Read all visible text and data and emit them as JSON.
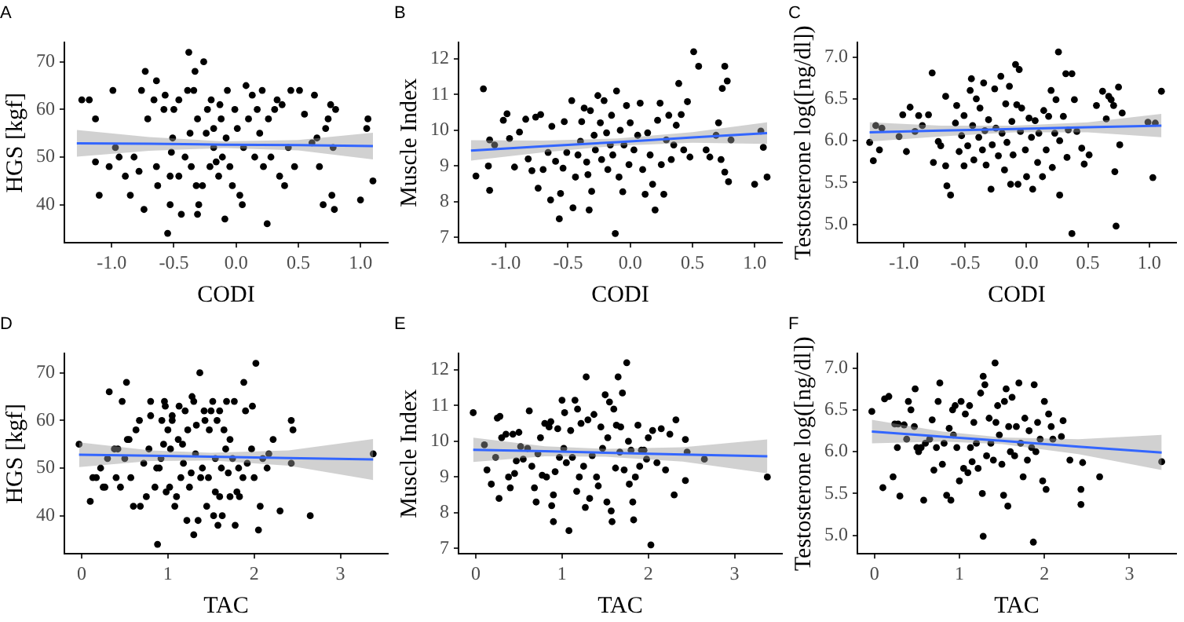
{
  "chart_data": [
    {
      "type": "scatter",
      "title": "A",
      "xlabel": "CODI",
      "ylabel": "HGS [kgf]",
      "xlim": [
        -1.38,
        1.22
      ],
      "xticks": [
        {
          "value": -1,
          "label": "-1.0"
        },
        -0.5,
        {
          "value": 0,
          "label": "0.0"
        },
        0.5,
        {
          "value": 1,
          "label": "1.0"
        }
      ],
      "ylim": [
        32,
        74
      ],
      "yticks": [
        40,
        50,
        60,
        70
      ],
      "grid": false,
      "series": [
        {
          "type": "scatter",
          "color": "#000000",
          "marker": "circle",
          "x": [
            -1.24,
            -1.18,
            -1.13,
            -1.13,
            -1.1,
            -0.99,
            -1.02,
            -0.97,
            -0.94,
            -0.89,
            -0.85,
            -0.82,
            -0.78,
            -0.76,
            -0.73,
            -0.74,
            -0.71,
            -0.64,
            -0.66,
            -0.64,
            -0.63,
            -0.58,
            -0.57,
            -0.55,
            -0.53,
            -0.53,
            -0.51,
            -0.5,
            -0.52,
            -0.46,
            -0.46,
            -0.44,
            -0.41,
            -0.39,
            -0.38,
            -0.37,
            -0.36,
            -0.34,
            -0.33,
            -0.31,
            -0.32,
            -0.31,
            -0.3,
            -0.27,
            -0.26,
            -0.24,
            -0.23,
            -0.21,
            -0.2,
            -0.18,
            -0.18,
            -0.16,
            -0.14,
            -0.13,
            -0.12,
            -0.11,
            -0.09,
            -0.08,
            -0.07,
            -0.05,
            -0.03,
            -0.01,
            0.01,
            0.03,
            0.05,
            0.06,
            0.08,
            0.1,
            0.13,
            0.15,
            0.17,
            0.19,
            0.21,
            0.22,
            0.25,
            0.26,
            0.28,
            0.31,
            0.33,
            0.35,
            0.37,
            0.39,
            0.42,
            0.44,
            0.47,
            0.51,
            0.55,
            0.61,
            0.63,
            0.65,
            0.67,
            0.7,
            0.72,
            0.74,
            0.76,
            0.77,
            0.78,
            0.79,
            0.8,
            1.0,
            1.05,
            1.06,
            1.1
          ],
          "values": [
            62,
            62,
            58,
            49,
            42,
            64,
            48,
            52,
            50,
            46,
            42,
            50,
            47,
            64,
            68,
            39,
            58,
            66,
            62,
            48,
            44,
            60,
            63,
            34,
            46,
            40,
            54,
            60,
            51,
            46,
            62,
            38,
            50,
            64,
            72,
            55,
            48,
            64,
            68,
            58,
            44,
            38,
            40,
            44,
            70,
            55,
            60,
            48,
            62,
            56,
            52,
            49,
            46,
            61,
            58,
            50,
            37,
            54,
            64,
            48,
            44,
            60,
            56,
            42,
            40,
            52,
            65,
            58,
            63,
            50,
            60,
            55,
            64,
            48,
            36,
            58,
            50,
            60,
            62,
            46,
            61,
            44,
            52,
            64,
            48,
            64,
            59,
            53,
            63,
            54,
            48,
            40,
            56,
            58,
            61,
            42,
            52,
            39,
            60,
            41,
            56,
            58,
            45
          ]
        },
        {
          "type": "line",
          "color": "#3366ff",
          "marker": "none",
          "x": [
            -1.28,
            -0.7,
            -0.1,
            0.5,
            1.1
          ],
          "values": [
            52.9,
            52.8,
            52.6,
            52.5,
            52.3
          ],
          "lower": [
            50.1,
            51.3,
            51.9,
            51.4,
            49.5
          ],
          "upper": [
            55.7,
            54.2,
            53.3,
            53.6,
            55.1
          ]
        }
      ]
    },
    {
      "type": "scatter",
      "title": "B",
      "xlabel": "CODI",
      "ylabel": "Muscle Index",
      "xlim": [
        -1.38,
        1.22
      ],
      "xticks": [
        {
          "value": -1,
          "label": "-1.0"
        },
        -0.5,
        {
          "value": 0,
          "label": "0.0"
        },
        0.5,
        {
          "value": 1,
          "label": "1.0"
        }
      ],
      "ylim": [
        6.85,
        12.45
      ],
      "yticks": [
        7,
        8,
        9,
        10,
        11,
        12
      ],
      "grid": false,
      "series": [
        {
          "type": "scatter",
          "color": "#000000",
          "marker": "circle",
          "x": [
            -1.24,
            -1.18,
            -1.14,
            -1.13,
            -1.13,
            -1.09,
            -1.02,
            -0.99,
            -0.97,
            -0.93,
            -0.89,
            -0.84,
            -0.82,
            -0.79,
            -0.76,
            -0.74,
            -0.72,
            -0.7,
            -0.66,
            -0.64,
            -0.63,
            -0.6,
            -0.57,
            -0.56,
            -0.54,
            -0.53,
            -0.51,
            -0.47,
            -0.46,
            -0.44,
            -0.42,
            -0.4,
            -0.39,
            -0.37,
            -0.35,
            -0.34,
            -0.33,
            -0.32,
            -0.31,
            -0.29,
            -0.28,
            -0.26,
            -0.24,
            -0.23,
            -0.21,
            -0.19,
            -0.18,
            -0.16,
            -0.15,
            -0.14,
            -0.12,
            -0.11,
            -0.09,
            -0.08,
            -0.06,
            -0.05,
            -0.03,
            -0.01,
            0.0,
            0.03,
            0.06,
            0.08,
            0.1,
            0.12,
            0.14,
            0.16,
            0.18,
            0.2,
            0.22,
            0.24,
            0.25,
            0.27,
            0.29,
            0.31,
            0.33,
            0.35,
            0.37,
            0.39,
            0.41,
            0.43,
            0.46,
            0.48,
            0.51,
            0.55,
            0.61,
            0.64,
            0.69,
            0.71,
            0.73,
            0.74,
            0.76,
            0.76,
            0.78,
            0.79,
            0.81,
            1.0,
            1.05,
            1.07,
            1.1
          ],
          "values": [
            8.72,
            11.16,
            9.0,
            8.32,
            9.73,
            9.59,
            10.28,
            10.46,
            9.77,
            8.97,
            9.95,
            10.31,
            9.2,
            8.87,
            10.37,
            8.38,
            10.44,
            8.9,
            9.38,
            8.05,
            10.11,
            9.13,
            7.52,
            8.23,
            8.94,
            10.24,
            9.38,
            10.83,
            7.83,
            8.69,
            9.31,
            9.69,
            10.24,
            10.62,
            9.11,
            8.76,
            7.77,
            10.55,
            8.29,
            9.86,
            9.45,
            10.97,
            10.21,
            9.18,
            10.83,
            9.93,
            8.9,
            9.59,
            10.42,
            9.31,
            7.11,
            11.1,
            8.69,
            10.0,
            8.28,
            9.59,
            10.69,
            9.04,
            10.21,
            9.45,
            9.86,
            10.76,
            8.9,
            8.21,
            9.93,
            9.31,
            8.49,
            7.77,
            10.28,
            10.76,
            9.04,
            8.21,
            9.73,
            10.42,
            9.18,
            9.59,
            10.14,
            11.31,
            10.44,
            9.45,
            10.8,
            9.25,
            12.2,
            11.79,
            9.45,
            9.25,
            9.86,
            10.21,
            9.18,
            11.17,
            11.79,
            8.83,
            11.38,
            8.56,
            9.73,
            8.49,
            9.98,
            9.52,
            8.69
          ]
        },
        {
          "type": "line",
          "color": "#3366ff",
          "marker": "none",
          "x": [
            -1.28,
            -0.7,
            -0.1,
            0.5,
            1.1
          ],
          "values": [
            9.43,
            9.55,
            9.67,
            9.8,
            9.92
          ],
          "lower": [
            9.15,
            9.38,
            9.57,
            9.65,
            9.62
          ],
          "upper": [
            9.72,
            9.71,
            9.77,
            9.95,
            10.22
          ]
        }
      ]
    },
    {
      "type": "scatter",
      "title": "C",
      "xlabel": "CODI",
      "ylabel": "Testosterone log([ng/dl])",
      "xlim": [
        -1.38,
        1.22
      ],
      "xticks": [
        {
          "value": -1,
          "label": "-1.0"
        },
        -0.5,
        {
          "value": 0,
          "label": "0.0"
        },
        0.5,
        {
          "value": 1,
          "label": "1.0"
        }
      ],
      "ylim": [
        4.78,
        7.17
      ],
      "yticks": [
        {
          "value": 5,
          "label": "5.0"
        },
        5.5,
        {
          "value": 6,
          "label": "6.0"
        },
        6.5,
        {
          "value": 7,
          "label": "7.0"
        }
      ],
      "grid": false,
      "series": [
        {
          "type": "scatter",
          "color": "#000000",
          "marker": "circle",
          "x": [
            -1.28,
            -1.25,
            -1.23,
            -1.2,
            -1.18,
            -1.04,
            -1.01,
            -0.98,
            -0.95,
            -0.91,
            -0.88,
            -0.85,
            -0.8,
            -0.77,
            -0.76,
            -0.72,
            -0.7,
            -0.66,
            -0.66,
            -0.65,
            -0.62,
            -0.58,
            -0.57,
            -0.55,
            -0.53,
            -0.51,
            -0.51,
            -0.48,
            -0.46,
            -0.45,
            -0.44,
            -0.43,
            -0.41,
            -0.39,
            -0.38,
            -0.36,
            -0.35,
            -0.34,
            -0.33,
            -0.31,
            -0.29,
            -0.28,
            -0.26,
            -0.25,
            -0.23,
            -0.21,
            -0.2,
            -0.18,
            -0.17,
            -0.16,
            -0.14,
            -0.13,
            -0.12,
            -0.11,
            -0.09,
            -0.08,
            -0.07,
            -0.06,
            -0.05,
            -0.04,
            -0.01,
            0.0,
            0.02,
            0.04,
            0.05,
            0.07,
            0.09,
            0.1,
            0.13,
            0.14,
            0.16,
            0.18,
            0.2,
            0.21,
            0.23,
            0.24,
            0.26,
            0.27,
            0.27,
            0.3,
            0.32,
            0.33,
            0.34,
            0.37,
            0.37,
            0.39,
            0.41,
            0.45,
            0.47,
            0.51,
            0.57,
            0.62,
            0.65,
            0.67,
            0.69,
            0.71,
            0.72,
            0.73,
            0.75,
            0.76,
            0.78,
            0.99,
            1.03,
            1.05,
            1.1
          ],
          "values": [
            5.98,
            5.76,
            6.18,
            5.89,
            6.15,
            6.05,
            6.31,
            5.87,
            6.4,
            6.11,
            6.3,
            6.18,
            6.31,
            6.81,
            5.74,
            5.99,
            5.94,
            6.53,
            5.7,
            5.46,
            5.35,
            6.21,
            6.42,
            5.87,
            6.06,
            6.3,
            5.7,
            5.94,
            6.6,
            6.74,
            6.18,
            5.77,
            6.5,
            6.04,
            6.39,
            5.89,
            6.69,
            6.12,
            5.71,
            6.25,
            5.42,
            5.95,
            6.62,
            6.15,
            5.82,
            6.77,
            6.09,
            5.65,
            6.44,
            5.98,
            6.65,
            5.48,
            6.23,
            5.83,
            6.91,
            6.43,
            5.48,
            6.85,
            6.11,
            6.39,
            5.89,
            5.57,
            6.27,
            6.04,
            5.42,
            6.24,
            5.74,
            6.09,
            5.57,
            6.36,
            5.89,
            6.29,
            6.6,
            5.68,
            6.09,
            6.49,
            7.06,
            5.35,
            6.0,
            6.29,
            6.8,
            5.8,
            6.13,
            6.8,
            4.89,
            6.49,
            6.11,
            5.91,
            5.72,
            5.83,
            6.42,
            6.59,
            6.26,
            6.53,
            6.49,
            6.42,
            5.63,
            4.98,
            6.64,
            5.95,
            6.33,
            6.22,
            5.56,
            6.21,
            6.59
          ]
        },
        {
          "type": "line",
          "color": "#3366ff",
          "marker": "none",
          "x": [
            -1.28,
            -0.7,
            -0.1,
            0.5,
            1.1
          ],
          "values": [
            6.1,
            6.12,
            6.14,
            6.16,
            6.18
          ],
          "lower": [
            5.99,
            6.05,
            6.1,
            6.1,
            6.04
          ],
          "upper": [
            6.22,
            6.18,
            6.18,
            6.22,
            6.32
          ]
        }
      ]
    },
    {
      "type": "scatter",
      "title": "D",
      "xlabel": "TAC",
      "ylabel": "HGS [kgf]",
      "xlim": [
        -0.2,
        3.55
      ],
      "xticks": [
        0,
        1,
        2,
        3
      ],
      "ylim": [
        32,
        74
      ],
      "yticks": [
        40,
        50,
        60,
        70
      ],
      "grid": false,
      "series": [
        {
          "type": "scatter",
          "color": "#000000",
          "marker": "circle",
          "x": [
            -0.03,
            0.1,
            0.13,
            0.17,
            0.22,
            0.25,
            0.27,
            0.3,
            0.32,
            0.38,
            0.4,
            0.42,
            0.45,
            0.47,
            0.5,
            0.52,
            0.53,
            0.55,
            0.57,
            0.6,
            0.63,
            0.67,
            0.68,
            0.72,
            0.75,
            0.78,
            0.8,
            0.8,
            0.85,
            0.87,
            0.9,
            0.92,
            0.88,
            0.93,
            0.95,
            0.96,
            0.97,
            0.98,
            1.0,
            1.02,
            1.03,
            1.05,
            1.05,
            1.08,
            1.1,
            1.12,
            1.13,
            1.15,
            1.17,
            1.18,
            1.2,
            1.22,
            1.23,
            1.25,
            1.27,
            1.28,
            1.3,
            1.3,
            1.32,
            1.33,
            1.35,
            1.37,
            1.38,
            1.4,
            1.42,
            1.43,
            1.45,
            1.47,
            1.48,
            1.5,
            1.52,
            1.53,
            1.55,
            1.55,
            1.57,
            1.58,
            1.6,
            1.6,
            1.62,
            1.63,
            1.65,
            1.67,
            1.68,
            1.7,
            1.72,
            1.72,
            1.75,
            1.77,
            1.78,
            1.8,
            1.82,
            1.83,
            1.87,
            1.88,
            1.9,
            1.92,
            1.97,
            1.98,
            2.0,
            2.02,
            2.05,
            2.07,
            2.1,
            2.15,
            2.17,
            2.22,
            2.3,
            2.43,
            2.43,
            2.45,
            2.65,
            3.38
          ],
          "values": [
            55,
            43,
            48,
            48,
            50,
            46,
            46,
            52,
            66,
            54,
            48,
            54,
            46,
            64,
            52,
            68,
            56,
            56,
            48,
            42,
            58,
            60,
            42,
            51,
            44,
            54,
            64,
            61,
            46,
            50,
            50,
            52,
            34,
            60,
            55,
            64,
            63,
            45,
            58,
            46,
            54,
            61,
            60,
            42,
            44,
            56,
            63,
            48,
            55,
            51,
            62,
            39,
            58,
            46,
            49,
            65,
            36,
            64,
            53,
            59,
            39,
            70,
            48,
            50,
            62,
            60,
            42,
            48,
            58,
            62,
            64,
            40,
            45,
            52,
            60,
            38,
            62,
            44,
            50,
            40,
            58,
            54,
            64,
            49,
            56,
            44,
            52,
            64,
            38,
            45,
            50,
            44,
            48,
            68,
            62,
            51,
            54,
            63,
            48,
            72,
            37,
            42,
            52,
            50,
            53,
            56,
            41,
            51,
            60,
            58,
            40,
            53
          ]
        },
        {
          "type": "line",
          "color": "#3366ff",
          "marker": "none",
          "x": [
            -0.03,
            0.8,
            1.5,
            2.4,
            3.38
          ],
          "values": [
            52.8,
            52.6,
            52.4,
            52.1,
            51.8
          ],
          "lower": [
            50.2,
            51.5,
            51.6,
            50.5,
            47.5
          ],
          "upper": [
            55.4,
            53.7,
            53.2,
            53.7,
            56.1
          ]
        }
      ]
    },
    {
      "type": "scatter",
      "title": "E",
      "xlabel": "TAC",
      "ylabel": "Muscle Index",
      "xlim": [
        -0.2,
        3.55
      ],
      "xticks": [
        0,
        1,
        2,
        3
      ],
      "ylim": [
        6.85,
        12.45
      ],
      "yticks": [
        7,
        8,
        9,
        10,
        11,
        12
      ],
      "grid": false,
      "series": [
        {
          "type": "scatter",
          "color": "#000000",
          "marker": "circle",
          "x": [
            -0.03,
            0.1,
            0.13,
            0.18,
            0.23,
            0.25,
            0.27,
            0.28,
            0.3,
            0.35,
            0.38,
            0.4,
            0.43,
            0.45,
            0.47,
            0.5,
            0.52,
            0.55,
            0.6,
            0.62,
            0.65,
            0.68,
            0.7,
            0.72,
            0.75,
            0.77,
            0.8,
            0.82,
            0.85,
            0.87,
            0.88,
            0.9,
            0.9,
            0.92,
            0.95,
            0.97,
            1.0,
            1.02,
            1.03,
            1.05,
            1.08,
            1.1,
            1.12,
            1.15,
            1.17,
            1.18,
            1.2,
            1.22,
            1.25,
            1.27,
            1.28,
            1.3,
            1.32,
            1.35,
            1.37,
            1.4,
            1.42,
            1.45,
            1.47,
            1.5,
            1.52,
            1.53,
            1.55,
            1.57,
            1.58,
            1.6,
            1.62,
            1.63,
            1.65,
            1.67,
            1.68,
            1.7,
            1.72,
            1.75,
            1.77,
            1.78,
            1.8,
            1.82,
            1.83,
            1.85,
            1.88,
            1.9,
            1.92,
            1.95,
            1.98,
            2.0,
            2.03,
            2.05,
            2.1,
            2.15,
            2.2,
            2.25,
            2.3,
            2.32,
            2.43,
            2.43,
            2.45,
            2.65,
            3.38
          ],
          "values": [
            10.8,
            9.9,
            9.2,
            8.8,
            9.55,
            10.65,
            8.4,
            10.7,
            10.1,
            10.2,
            9.0,
            8.7,
            10.2,
            9.1,
            9.45,
            10.25,
            9.85,
            9.5,
            9.8,
            10.85,
            9.3,
            8.7,
            8.3,
            9.65,
            10.1,
            9.05,
            10.5,
            9.0,
            10.4,
            10.55,
            8.2,
            8.5,
            7.75,
            9.15,
            10.35,
            9.55,
            11.15,
            9.8,
            10.8,
            9.4,
            7.5,
            10.3,
            9.55,
            11.15,
            8.6,
            10.9,
            9.0,
            10.5,
            9.3,
            8.15,
            11.8,
            10.6,
            8.4,
            9.6,
            10.75,
            9.0,
            8.75,
            10.4,
            9.8,
            11.3,
            8.3,
            10.1,
            11.1,
            8.05,
            7.75,
            10.9,
            9.25,
            10.45,
            11.8,
            9.7,
            10.4,
            11.35,
            9.2,
            12.2,
            10.0,
            8.8,
            9.75,
            8.3,
            7.8,
            9.0,
            10.45,
            9.3,
            9.75,
            9.75,
            9.5,
            10.1,
            7.1,
            10.3,
            9.4,
            10.35,
            9.2,
            10.2,
            8.5,
            10.6,
            10.05,
            8.9,
            9.7,
            9.5,
            9.0
          ]
        },
        {
          "type": "line",
          "color": "#3366ff",
          "marker": "none",
          "x": [
            -0.03,
            0.8,
            1.5,
            2.4,
            3.38
          ],
          "values": [
            9.76,
            9.72,
            9.68,
            9.63,
            9.58
          ],
          "lower": [
            9.42,
            9.58,
            9.57,
            9.43,
            9.1
          ],
          "upper": [
            10.1,
            9.86,
            9.79,
            9.83,
            10.05
          ]
        }
      ]
    },
    {
      "type": "scatter",
      "title": "F",
      "xlabel": "TAC",
      "ylabel": "Testosterone log([ng/dl])",
      "xlim": [
        -0.2,
        3.55
      ],
      "xticks": [
        0,
        1,
        2,
        3
      ],
      "ylim": [
        4.78,
        7.17
      ],
      "yticks": [
        {
          "value": 5,
          "label": "5.0"
        },
        5.5,
        {
          "value": 6,
          "label": "6.0"
        },
        6.5,
        {
          "value": 7,
          "label": "7.0"
        }
      ],
      "grid": false,
      "series": [
        {
          "type": "scatter",
          "color": "#000000",
          "marker": "circle",
          "x": [
            -0.03,
            0.1,
            0.12,
            0.17,
            0.22,
            0.24,
            0.27,
            0.28,
            0.3,
            0.35,
            0.38,
            0.4,
            0.43,
            0.47,
            0.48,
            0.5,
            0.52,
            0.55,
            0.58,
            0.6,
            0.65,
            0.68,
            0.7,
            0.73,
            0.75,
            0.77,
            0.8,
            0.82,
            0.85,
            0.88,
            0.9,
            0.92,
            0.93,
            0.95,
            0.97,
            1.0,
            1.02,
            1.05,
            1.07,
            1.1,
            1.12,
            1.13,
            1.15,
            1.17,
            1.2,
            1.22,
            1.25,
            1.27,
            1.28,
            1.28,
            1.3,
            1.32,
            1.35,
            1.37,
            1.4,
            1.42,
            1.43,
            1.45,
            1.47,
            1.5,
            1.52,
            1.53,
            1.55,
            1.57,
            1.58,
            1.6,
            1.62,
            1.65,
            1.67,
            1.7,
            1.72,
            1.75,
            1.77,
            1.8,
            1.82,
            1.85,
            1.87,
            1.88,
            1.9,
            1.92,
            1.95,
            1.98,
            2.0,
            2.02,
            2.05,
            2.08,
            2.1,
            2.2,
            2.22,
            2.3,
            2.43,
            2.43,
            2.45,
            2.65,
            3.38
          ],
          "values": [
            6.48,
            5.57,
            6.63,
            6.66,
            5.7,
            6.33,
            6.05,
            6.33,
            5.47,
            6.32,
            6.15,
            6.6,
            6.5,
            6.3,
            6.75,
            6.05,
            6.0,
            6.05,
            5.42,
            6.1,
            6.15,
            6.38,
            5.78,
            6.05,
            6.6,
            6.82,
            5.85,
            6.1,
            5.48,
            6.28,
            5.42,
            6.5,
            6.2,
            6.55,
            6.05,
            5.65,
            6.6,
            5.8,
            6.45,
            5.75,
            6.55,
            6.05,
            5.88,
            6.35,
            6.1,
            5.8,
            6.7,
            5.5,
            6.9,
            4.99,
            6.8,
            5.95,
            6.4,
            6.1,
            5.9,
            7.06,
            6.35,
            6.55,
            6.2,
            5.85,
            5.48,
            6.6,
            6.75,
            5.35,
            6.3,
            6.0,
            6.65,
            5.95,
            6.3,
            6.82,
            6.1,
            5.7,
            6.4,
            5.9,
            6.25,
            6.05,
            4.92,
            6.8,
            6.0,
            6.35,
            6.15,
            5.65,
            6.6,
            5.55,
            6.45,
            6.3,
            6.15,
            6.18,
            6.37,
            5.9,
            5.55,
            5.37,
            5.87,
            5.7,
            5.88
          ]
        },
        {
          "type": "line",
          "color": "#3366ff",
          "marker": "none",
          "x": [
            -0.03,
            0.8,
            1.5,
            2.4,
            3.38
          ],
          "values": [
            6.24,
            6.18,
            6.13,
            6.06,
            5.99
          ],
          "lower": [
            6.1,
            6.12,
            6.09,
            5.97,
            5.78
          ],
          "upper": [
            6.38,
            6.24,
            6.17,
            6.15,
            6.2
          ]
        }
      ]
    }
  ]
}
